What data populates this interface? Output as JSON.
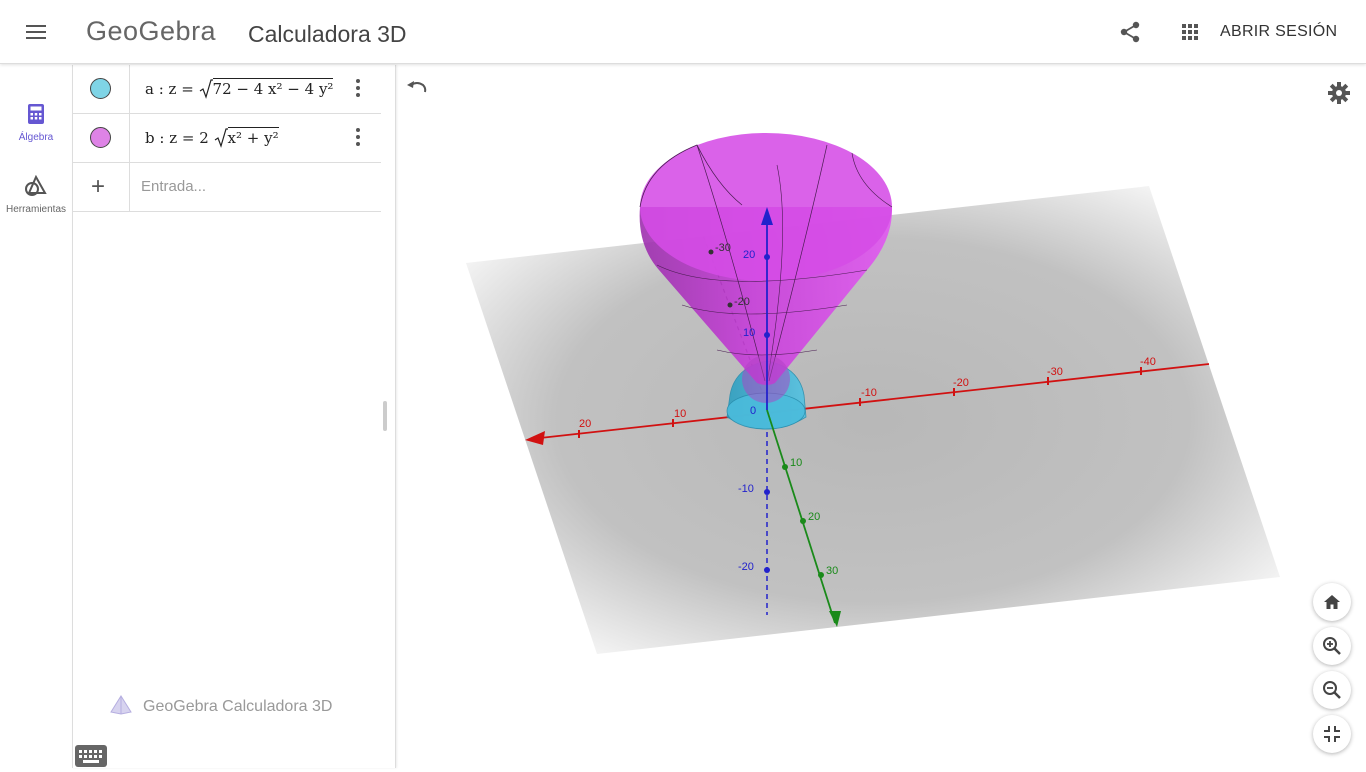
{
  "header": {
    "logo": "GeoGebra",
    "title": "Calculadora 3D",
    "login_label": "ABRIR SESIÓN"
  },
  "sidebar": {
    "items": [
      {
        "label": "Álgebra",
        "icon": "calculator-icon",
        "active": true
      },
      {
        "label": "Herramientas",
        "icon": "tools-icon",
        "active": false
      }
    ]
  },
  "algebra": {
    "objects": [
      {
        "name": "a",
        "color": "#7fd4e6",
        "formula_prefix": "a :  z = ",
        "radicand": "72 − 4 x² − 4 y²"
      },
      {
        "name": "b",
        "color": "#de83e6",
        "formula_prefix": "b :  z = 2 ",
        "radicand": "x² + y²"
      }
    ],
    "input_placeholder": "Entrada...",
    "brand": "GeoGebra Calculadora 3D"
  },
  "graphics": {
    "x_ticks": [
      "20",
      "10",
      "-10",
      "-20",
      "-30",
      "-40"
    ],
    "y_ticks": [
      "10",
      "20",
      "30"
    ],
    "z_ticks_up": [
      "10",
      "20"
    ],
    "z_ticks_down": [
      "-10",
      "-20"
    ],
    "y_ticks_back": [
      "-20",
      "-30"
    ],
    "origin_label": "0",
    "colors": {
      "x_axis": "#d11111",
      "y_axis": "#1a8a1a",
      "z_axis": "#2222cc",
      "cone": "#d54ce6",
      "hemisphere": "#3ab5d6"
    }
  }
}
